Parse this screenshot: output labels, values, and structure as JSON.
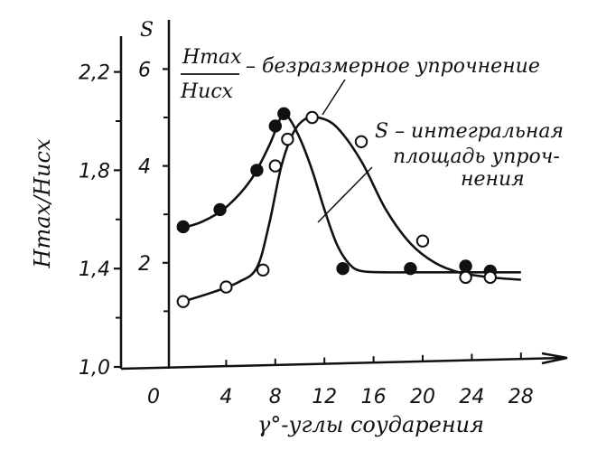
{
  "chart_data": {
    "type": "scatter",
    "xlabel": "γ°-углы соударения",
    "x_ticks": [
      "0",
      "4",
      "8",
      "12",
      "16",
      "20",
      "24",
      "28"
    ],
    "xlim": [
      0,
      30
    ],
    "ylabel_left": "Hmax/Hисх",
    "yticks_left": [
      "1,0",
      "1,4",
      "1,8",
      "2,2"
    ],
    "ylim_left": [
      1.0,
      2.4
    ],
    "ylabel_right": "S",
    "yticks_right": [
      "2",
      "4",
      "6"
    ],
    "ylim_right": [
      0,
      7
    ],
    "legend": {
      "fraction_num": "Hmax",
      "fraction_den": "Hисх",
      "fraction_text": "– безразмерное упрочнение",
      "s_text_line1": "S – интегральная",
      "s_text_line2": "площадь упроч-",
      "s_text_line3": "нения"
    },
    "series": [
      {
        "name": "Hmax/Hисх",
        "marker": "filled",
        "axis": "left",
        "points": [
          [
            0.5,
            1.57
          ],
          [
            3.5,
            1.64
          ],
          [
            6.5,
            1.8
          ],
          [
            8.0,
            1.98
          ],
          [
            8.7,
            2.03
          ],
          [
            13.5,
            1.4
          ],
          [
            19.0,
            1.4
          ],
          [
            23.5,
            1.41
          ],
          [
            25.5,
            1.39
          ]
        ],
        "curve": [
          [
            0.0,
            1.56
          ],
          [
            2,
            1.59
          ],
          [
            4,
            1.65
          ],
          [
            6,
            1.76
          ],
          [
            7.5,
            1.9
          ],
          [
            8.5,
            2.02
          ],
          [
            9,
            2.02
          ],
          [
            10,
            1.93
          ],
          [
            11,
            1.8
          ],
          [
            12,
            1.64
          ],
          [
            13,
            1.5
          ],
          [
            14,
            1.42
          ],
          [
            15,
            1.39
          ],
          [
            17,
            1.385
          ],
          [
            20,
            1.385
          ],
          [
            24,
            1.385
          ],
          [
            28,
            1.385
          ]
        ]
      },
      {
        "name": "S",
        "marker": "open",
        "axis": "right",
        "points": [
          [
            0.5,
            1.2
          ],
          [
            4.0,
            1.5
          ],
          [
            7.0,
            1.85
          ],
          [
            8.0,
            4.0
          ],
          [
            9.0,
            4.55
          ],
          [
            11.0,
            5.0
          ],
          [
            15.0,
            4.5
          ],
          [
            20.0,
            2.45
          ],
          [
            23.5,
            1.7
          ],
          [
            25.5,
            1.7
          ]
        ],
        "curve": [
          [
            0.5,
            1.2
          ],
          [
            3,
            1.4
          ],
          [
            5,
            1.6
          ],
          [
            6.5,
            1.9
          ],
          [
            7.5,
            2.8
          ],
          [
            8.5,
            4.0
          ],
          [
            9.5,
            4.7
          ],
          [
            10.5,
            4.98
          ],
          [
            11.5,
            5.0
          ],
          [
            13,
            4.8
          ],
          [
            15,
            4.1
          ],
          [
            17,
            3.1
          ],
          [
            19,
            2.4
          ],
          [
            21,
            2.0
          ],
          [
            23,
            1.8
          ],
          [
            25.5,
            1.7
          ],
          [
            28,
            1.65
          ]
        ]
      }
    ]
  }
}
